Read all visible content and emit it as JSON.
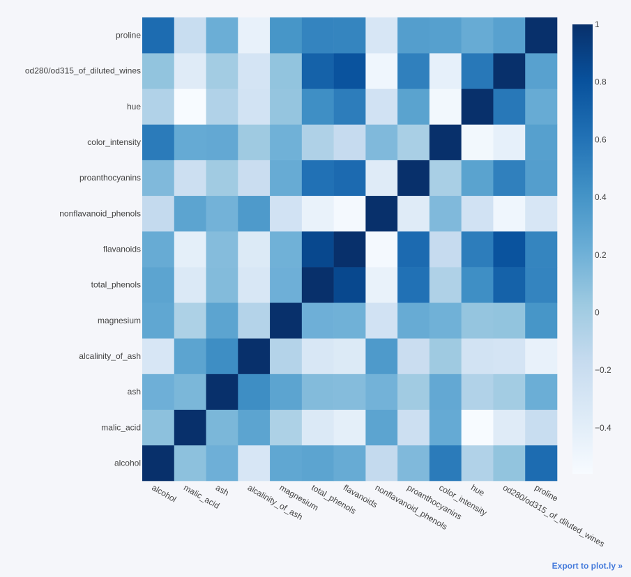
{
  "chart_data": {
    "type": "heatmap",
    "title": "",
    "xlabel": "",
    "ylabel": "",
    "x": [
      "alcohol",
      "malic_acid",
      "ash",
      "alcalinity_of_ash",
      "magnesium",
      "total_phenols",
      "flavanoids",
      "nonflavanoid_phenols",
      "proanthocyanins",
      "color_intensity",
      "hue",
      "od280/od315_of_diluted_wines",
      "proline"
    ],
    "y": [
      "alcohol",
      "malic_acid",
      "ash",
      "alcalinity_of_ash",
      "magnesium",
      "total_phenols",
      "flavanoids",
      "nonflavanoid_phenols",
      "proanthocyanins",
      "color_intensity",
      "hue",
      "od280/od315_of_diluted_wines",
      "proline"
    ],
    "z": [
      [
        1.0,
        0.09,
        0.21,
        -0.31,
        0.27,
        0.29,
        0.24,
        -0.16,
        0.14,
        0.55,
        -0.07,
        0.07,
        0.64
      ],
      [
        0.09,
        1.0,
        0.16,
        0.29,
        -0.05,
        -0.34,
        -0.41,
        0.29,
        -0.22,
        0.25,
        -0.56,
        -0.37,
        -0.19
      ],
      [
        0.21,
        0.16,
        1.0,
        0.44,
        0.29,
        0.13,
        0.12,
        0.19,
        0.01,
        0.26,
        -0.07,
        0.0,
        0.22
      ],
      [
        -0.31,
        0.29,
        0.44,
        1.0,
        -0.08,
        -0.32,
        -0.35,
        0.36,
        -0.2,
        0.02,
        -0.27,
        -0.28,
        -0.44
      ],
      [
        0.27,
        -0.05,
        0.29,
        -0.08,
        1.0,
        0.21,
        0.2,
        -0.26,
        0.24,
        0.2,
        0.06,
        0.07,
        0.39
      ],
      [
        0.29,
        -0.34,
        0.13,
        -0.32,
        0.21,
        1.0,
        0.86,
        -0.45,
        0.61,
        -0.06,
        0.43,
        0.7,
        0.5
      ],
      [
        0.24,
        -0.41,
        0.12,
        -0.35,
        0.2,
        0.86,
        1.0,
        -0.54,
        0.65,
        -0.17,
        0.54,
        0.79,
        0.49
      ],
      [
        -0.16,
        0.29,
        0.19,
        0.36,
        -0.26,
        -0.45,
        -0.54,
        1.0,
        -0.37,
        0.14,
        -0.26,
        -0.5,
        -0.31
      ],
      [
        0.14,
        -0.22,
        0.01,
        -0.2,
        0.24,
        0.61,
        0.65,
        -0.37,
        1.0,
        -0.03,
        0.3,
        0.52,
        0.33
      ],
      [
        0.55,
        0.25,
        0.26,
        0.02,
        0.2,
        -0.06,
        -0.17,
        0.14,
        -0.03,
        1.0,
        -0.52,
        -0.43,
        0.32
      ],
      [
        -0.07,
        -0.56,
        -0.07,
        -0.27,
        0.06,
        0.43,
        0.54,
        -0.26,
        0.3,
        -0.52,
        1.0,
        0.57,
        0.24
      ],
      [
        0.07,
        -0.37,
        0.0,
        -0.28,
        0.07,
        0.7,
        0.79,
        -0.5,
        0.52,
        -0.43,
        0.57,
        1.0,
        0.31
      ],
      [
        0.64,
        -0.19,
        0.22,
        -0.44,
        0.39,
        0.5,
        0.49,
        -0.31,
        0.33,
        0.32,
        0.24,
        0.31,
        1.0
      ]
    ],
    "zmin": -0.56,
    "zmax": 1.0,
    "colorscale": "Blues",
    "colorbar": {
      "ticks": [
        1,
        0.8,
        0.6,
        0.4,
        0.2,
        0,
        -0.2,
        -0.4
      ],
      "ticklabels": [
        "1",
        "0.8",
        "0.6",
        "0.4",
        "0.2",
        "0",
        "−0.2",
        "−0.4"
      ]
    },
    "grid": false,
    "legend": "colorbar-right"
  },
  "export_link": "Export to plot.ly »"
}
